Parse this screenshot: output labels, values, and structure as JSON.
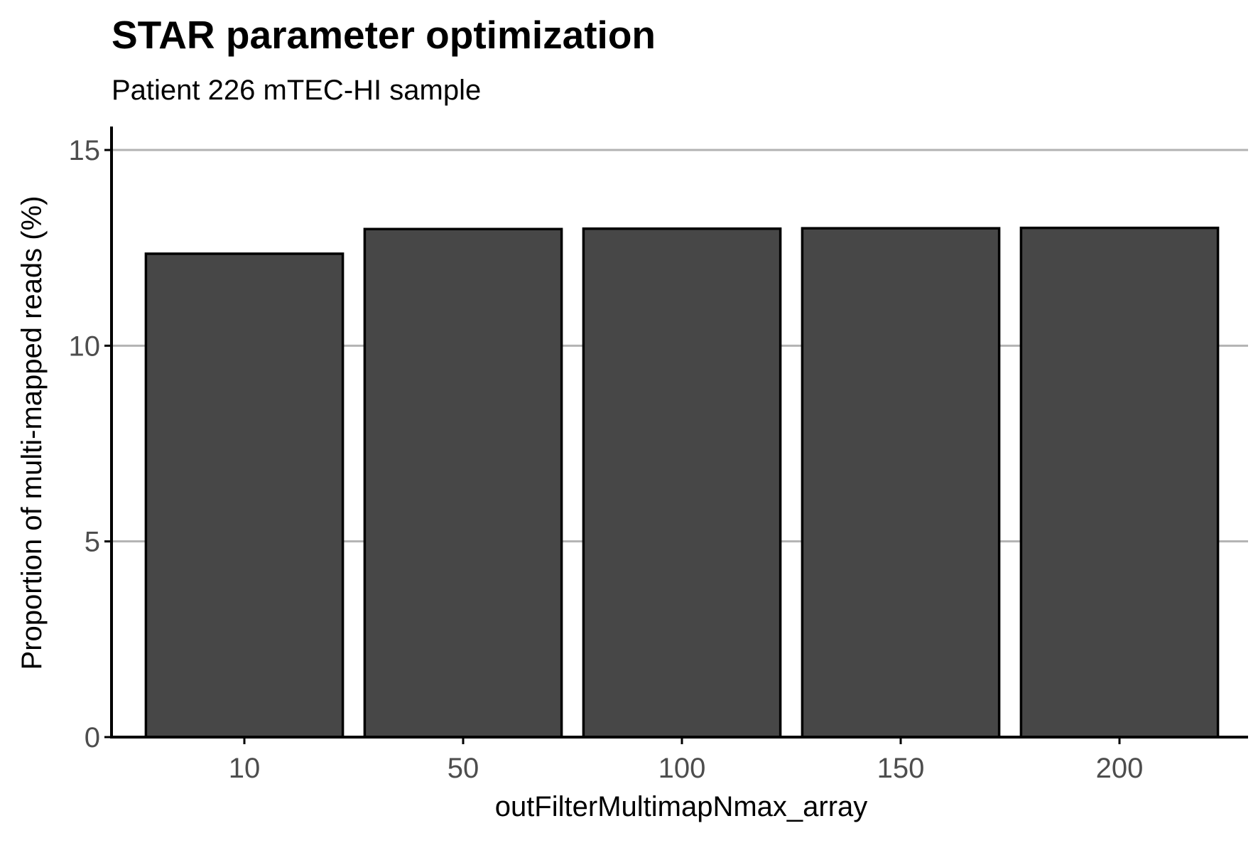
{
  "chart_data": {
    "type": "bar",
    "title": "STAR parameter optimization",
    "subtitle": "Patient 226 mTEC-HI sample",
    "xlabel": "outFilterMultimapNmax_array",
    "ylabel": "Proportion of multi-mapped reads (%)",
    "categories": [
      "10",
      "50",
      "100",
      "150",
      "200"
    ],
    "values": [
      12.35,
      12.98,
      12.99,
      13.0,
      13.01
    ],
    "ylim": [
      0,
      15.6
    ],
    "yticks": [
      0,
      5,
      10,
      15
    ],
    "grid": "horizontal major",
    "legend": "none",
    "colors": {
      "bar_fill": "#474747",
      "bar_stroke": "#000000",
      "grid": "#b3b3b3",
      "axis": "#000000",
      "tick_text": "#4d4d4d"
    }
  }
}
